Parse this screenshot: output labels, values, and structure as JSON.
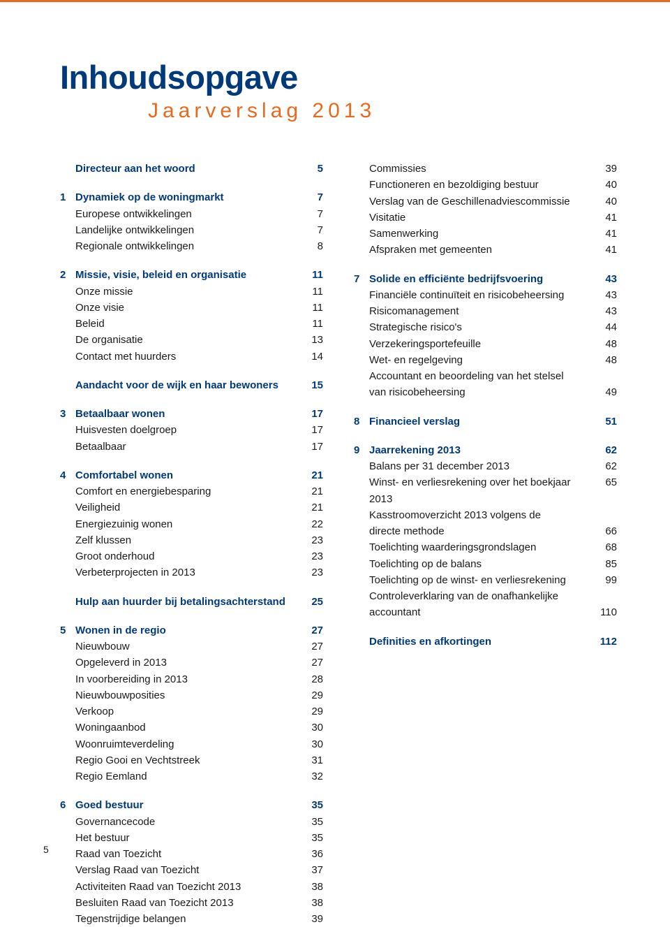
{
  "colors": {
    "blue": "#003a7a",
    "orange": "#e66a1f",
    "text": "#1a1a1a",
    "bg": "#ffffff"
  },
  "title": "Inhoudsopgave",
  "subtitle": "Jaarverslag 2013",
  "footer_page": "5",
  "left": [
    {
      "type": "head",
      "num": "",
      "label": "Directeur aan het woord",
      "page": "5"
    },
    {
      "type": "gap-md"
    },
    {
      "type": "head",
      "num": "1",
      "label": "Dynamiek op de woningmarkt",
      "page": "7"
    },
    {
      "type": "sub",
      "num": "",
      "label": "Europese ontwikkelingen",
      "page": "7"
    },
    {
      "type": "sub",
      "num": "",
      "label": "Landelijke ontwikkelingen",
      "page": "7"
    },
    {
      "type": "sub",
      "num": "",
      "label": "Regionale ontwikkelingen",
      "page": "8"
    },
    {
      "type": "gap-md"
    },
    {
      "type": "head",
      "num": "2",
      "label": "Missie, visie, beleid en organisatie",
      "page": "11"
    },
    {
      "type": "sub",
      "num": "",
      "label": "Onze missie",
      "page": "11"
    },
    {
      "type": "sub",
      "num": "",
      "label": "Onze visie",
      "page": "11"
    },
    {
      "type": "sub",
      "num": "",
      "label": "Beleid",
      "page": "11"
    },
    {
      "type": "sub",
      "num": "",
      "label": "De organisatie",
      "page": "13"
    },
    {
      "type": "sub",
      "num": "",
      "label": "Contact met huurders",
      "page": "14"
    },
    {
      "type": "gap-md"
    },
    {
      "type": "link",
      "num": "",
      "label": "Aandacht voor de wijk en haar bewoners",
      "page": "15"
    },
    {
      "type": "gap-md"
    },
    {
      "type": "head",
      "num": "3",
      "label": "Betaalbaar wonen",
      "page": "17"
    },
    {
      "type": "sub",
      "num": "",
      "label": "Huisvesten doelgroep",
      "page": "17"
    },
    {
      "type": "sub",
      "num": "",
      "label": "Betaalbaar",
      "page": "17"
    },
    {
      "type": "gap-md"
    },
    {
      "type": "head",
      "num": "4",
      "label": "Comfortabel wonen",
      "page": "21"
    },
    {
      "type": "sub",
      "num": "",
      "label": "Comfort en energiebesparing",
      "page": "21"
    },
    {
      "type": "sub",
      "num": "",
      "label": "Veiligheid",
      "page": "21"
    },
    {
      "type": "sub",
      "num": "",
      "label": "Energiezuinig wonen",
      "page": "22"
    },
    {
      "type": "sub",
      "num": "",
      "label": "Zelf klussen",
      "page": "23"
    },
    {
      "type": "sub",
      "num": "",
      "label": "Groot onderhoud",
      "page": "23"
    },
    {
      "type": "sub",
      "num": "",
      "label": "Verbeterprojecten in 2013",
      "page": "23"
    },
    {
      "type": "gap-md"
    },
    {
      "type": "link",
      "num": "",
      "label": "Hulp aan huurder bij betalingsachterstand",
      "page": "25"
    },
    {
      "type": "gap-md"
    },
    {
      "type": "head",
      "num": "5",
      "label": "Wonen in de regio",
      "page": "27"
    },
    {
      "type": "sub",
      "num": "",
      "label": "Nieuwbouw",
      "page": "27"
    },
    {
      "type": "sub",
      "num": "",
      "label": "Opgeleverd in 2013",
      "page": "27"
    },
    {
      "type": "sub",
      "num": "",
      "label": "In voorbereiding in 2013",
      "page": "28"
    },
    {
      "type": "sub",
      "num": "",
      "label": "Nieuwbouwposities",
      "page": "29"
    },
    {
      "type": "sub",
      "num": "",
      "label": "Verkoop",
      "page": "29"
    },
    {
      "type": "sub",
      "num": "",
      "label": "Woningaanbod",
      "page": "30"
    },
    {
      "type": "sub",
      "num": "",
      "label": "Woonruimteverdeling",
      "page": "30"
    },
    {
      "type": "sub",
      "num": "",
      "label": "Regio Gooi en Vechtstreek",
      "page": "31"
    },
    {
      "type": "sub",
      "num": "",
      "label": "Regio Eemland",
      "page": "32"
    },
    {
      "type": "gap-md"
    },
    {
      "type": "head",
      "num": "6",
      "label": "Goed bestuur",
      "page": "35"
    },
    {
      "type": "sub",
      "num": "",
      "label": "Governancecode",
      "page": "35"
    },
    {
      "type": "sub",
      "num": "",
      "label": "Het bestuur",
      "page": "35"
    },
    {
      "type": "sub",
      "num": "",
      "label": "Raad van Toezicht",
      "page": "36"
    },
    {
      "type": "sub",
      "num": "",
      "label": "Verslag Raad van Toezicht",
      "page": "37"
    },
    {
      "type": "sub",
      "num": "",
      "label": "Activiteiten Raad van Toezicht 2013",
      "page": "38"
    },
    {
      "type": "sub",
      "num": "",
      "label": "Besluiten Raad van Toezicht 2013",
      "page": "38"
    },
    {
      "type": "sub",
      "num": "",
      "label": "Tegenstrijdige belangen",
      "page": "39"
    }
  ],
  "right": [
    {
      "type": "sub",
      "num": "",
      "label": "Commissies",
      "page": "39"
    },
    {
      "type": "sub",
      "num": "",
      "label": "Functioneren en bezoldiging bestuur",
      "page": "40"
    },
    {
      "type": "sub",
      "num": "",
      "label": "Verslag van de Geschillenadviescommissie",
      "page": "40"
    },
    {
      "type": "sub",
      "num": "",
      "label": "Visitatie",
      "page": "41"
    },
    {
      "type": "sub",
      "num": "",
      "label": "Samenwerking",
      "page": "41"
    },
    {
      "type": "sub",
      "num": "",
      "label": "Afspraken met gemeenten",
      "page": "41"
    },
    {
      "type": "gap-md"
    },
    {
      "type": "head",
      "num": "7",
      "label": "Solide en efficiënte bedrijfsvoering",
      "page": "43"
    },
    {
      "type": "sub",
      "num": "",
      "label": "Financiële continuïteit en risicobeheersing",
      "page": "43"
    },
    {
      "type": "sub",
      "num": "",
      "label": "Risicomanagement",
      "page": "43"
    },
    {
      "type": "sub",
      "num": "",
      "label": "Strategische risico's",
      "page": "44"
    },
    {
      "type": "sub",
      "num": "",
      "label": "Verzekeringsportefeuille",
      "page": "48"
    },
    {
      "type": "sub",
      "num": "",
      "label": "Wet- en regelgeving",
      "page": "48"
    },
    {
      "type": "sub",
      "num": "",
      "label": "Accountant en beoordeling van het stelsel",
      "page": ""
    },
    {
      "type": "sub",
      "num": "",
      "label": "van risicobeheersing",
      "page": "49"
    },
    {
      "type": "gap-md"
    },
    {
      "type": "head",
      "num": "8",
      "label": "Financieel verslag",
      "page": "51"
    },
    {
      "type": "gap-md"
    },
    {
      "type": "head",
      "num": "9",
      "label": "Jaarrekening 2013",
      "page": "62"
    },
    {
      "type": "sub",
      "num": "",
      "label": "Balans per 31 december 2013",
      "page": "62"
    },
    {
      "type": "sub",
      "num": "",
      "label": "Winst- en verliesrekening over het boekjaar 2013",
      "page": "65"
    },
    {
      "type": "sub",
      "num": "",
      "label": "Kasstroomoverzicht 2013 volgens de",
      "page": ""
    },
    {
      "type": "sub",
      "num": "",
      "label": "directe methode",
      "page": "66"
    },
    {
      "type": "sub",
      "num": "",
      "label": "Toelichting waarderingsgrondslagen",
      "page": "68"
    },
    {
      "type": "sub",
      "num": "",
      "label": "Toelichting op de balans",
      "page": "85"
    },
    {
      "type": "sub",
      "num": "",
      "label": "Toelichting op de winst- en verliesrekening",
      "page": "99"
    },
    {
      "type": "sub",
      "num": "",
      "label": "Controleverklaring van de onafhankelijke",
      "page": ""
    },
    {
      "type": "sub",
      "num": "",
      "label": "accountant",
      "page": "110"
    },
    {
      "type": "gap-md"
    },
    {
      "type": "link",
      "num": "",
      "label": "Definities en afkortingen",
      "page": "112"
    }
  ]
}
